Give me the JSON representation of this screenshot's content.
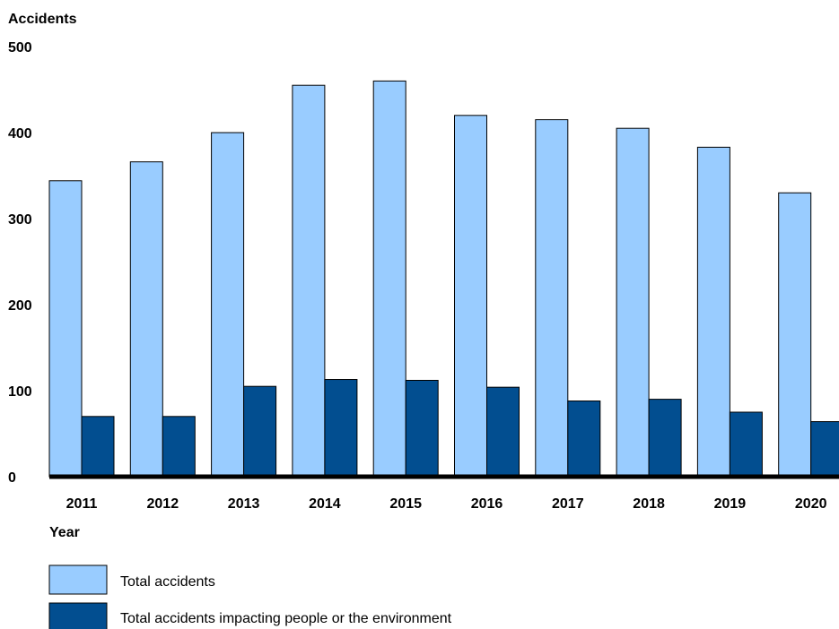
{
  "chart_data": {
    "type": "bar",
    "ylabel": "Accidents",
    "xlabel": "Year",
    "categories": [
      "2011",
      "2012",
      "2013",
      "2014",
      "2015",
      "2016",
      "2017",
      "2018",
      "2019",
      "2020"
    ],
    "series": [
      {
        "name": "Total accidents",
        "color": "#99ccff",
        "values": [
          344,
          366,
          400,
          455,
          460,
          420,
          415,
          405,
          383,
          330
        ]
      },
      {
        "name": "Total accidents impacting people or the environment",
        "color": "#024e90",
        "values": [
          70,
          70,
          105,
          113,
          112,
          104,
          88,
          90,
          75,
          64
        ]
      }
    ],
    "ylim": [
      0,
      500
    ],
    "yticks": [
      0,
      100,
      200,
      300,
      400,
      500
    ],
    "grid": false,
    "legend_position": "bottom-left"
  }
}
